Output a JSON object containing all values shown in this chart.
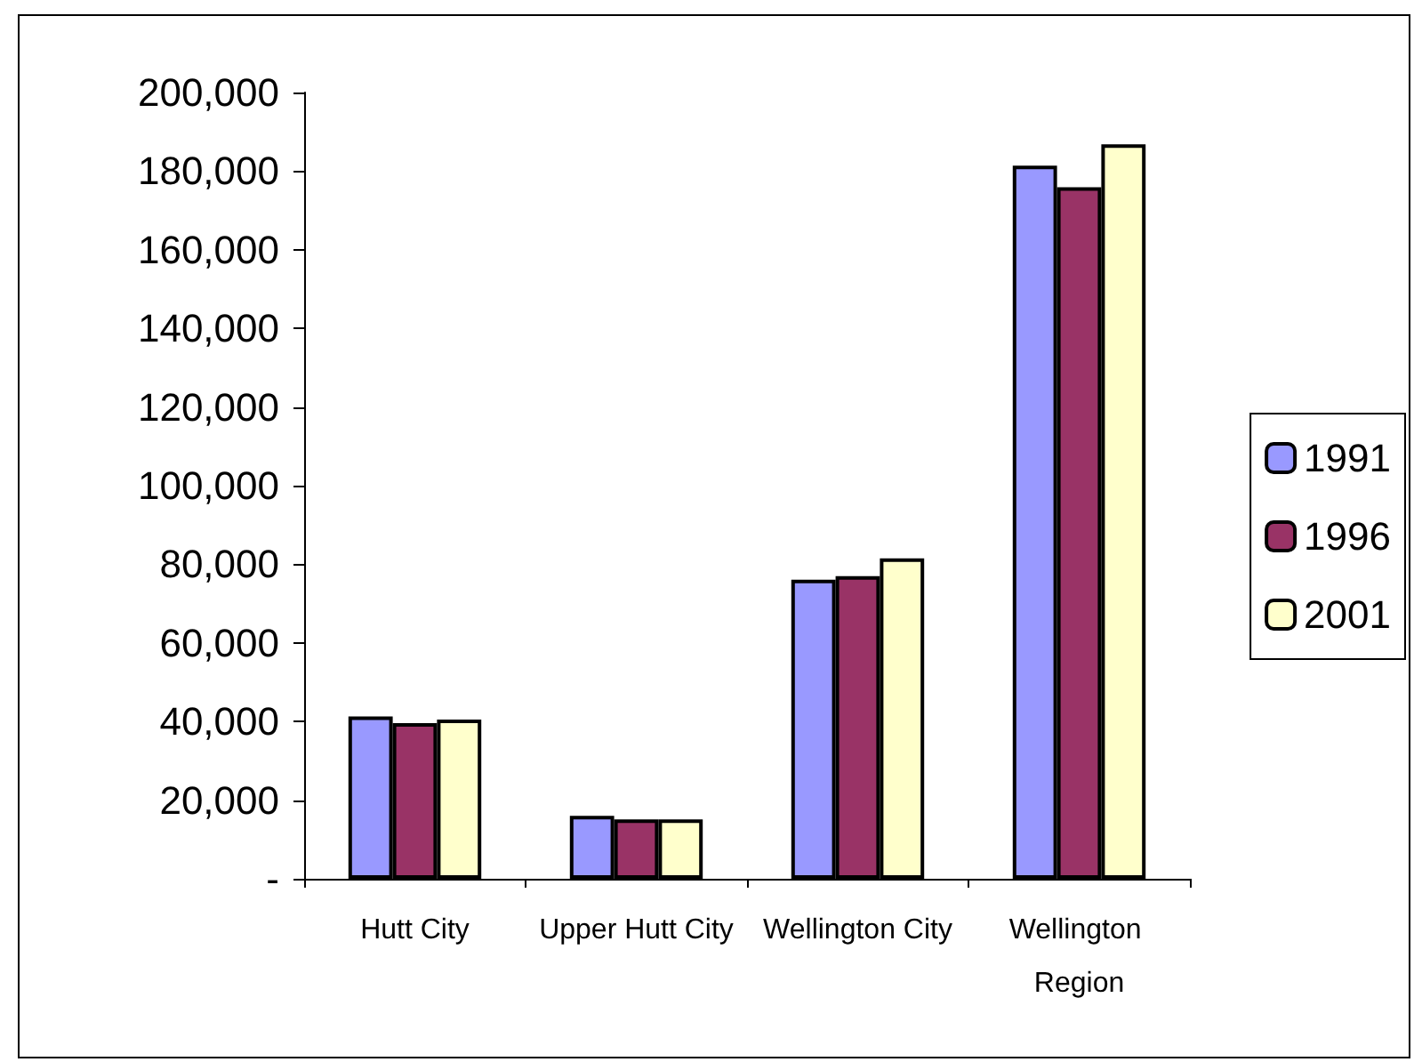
{
  "chart_data": {
    "type": "bar",
    "categories": [
      "Hutt City",
      "Upper Hutt City",
      "Wellington City",
      "Wellington Region"
    ],
    "series": [
      {
        "name": "1991",
        "color": "#9999ff",
        "values": [
          41300,
          16000,
          76100,
          181400
        ]
      },
      {
        "name": "1996",
        "color": "#993366",
        "values": [
          39600,
          15100,
          77000,
          175900
        ]
      },
      {
        "name": "2001",
        "color": "#ffffcc",
        "values": [
          40500,
          15100,
          81500,
          186800
        ]
      }
    ],
    "ylim": [
      0,
      200000
    ],
    "yticks": [
      {
        "value": 0,
        "label": "-"
      },
      {
        "value": 20000,
        "label": "20,000"
      },
      {
        "value": 40000,
        "label": "40,000"
      },
      {
        "value": 60000,
        "label": "60,000"
      },
      {
        "value": 80000,
        "label": "80,000"
      },
      {
        "value": 100000,
        "label": "100,000"
      },
      {
        "value": 120000,
        "label": "120,000"
      },
      {
        "value": 140000,
        "label": "140,000"
      },
      {
        "value": 160000,
        "label": "160,000"
      },
      {
        "value": 180000,
        "label": "180,000"
      },
      {
        "value": 200000,
        "label": "200,000"
      }
    ],
    "grid": false,
    "legend": "right"
  }
}
